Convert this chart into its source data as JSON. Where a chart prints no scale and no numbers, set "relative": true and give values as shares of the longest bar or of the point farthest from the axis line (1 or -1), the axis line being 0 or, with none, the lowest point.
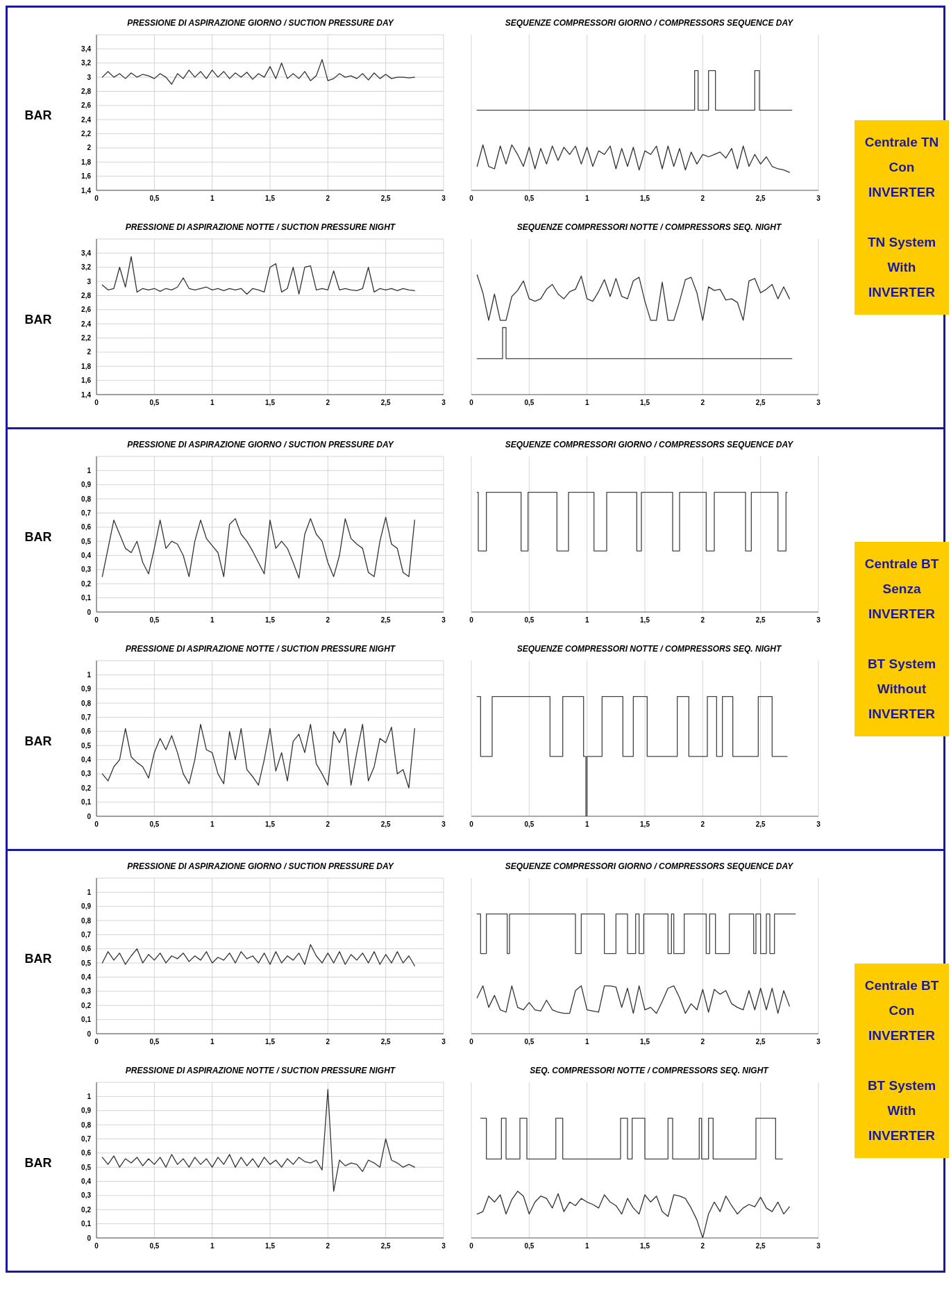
{
  "chart_data": [
    {
      "type": "line",
      "title": "PRESSIONE DI ASPIRAZIONE GIORNO / SUCTION PRESSURE DAY",
      "ylabel": "BAR",
      "color": "#333333",
      "grid": true,
      "xlim": [
        0,
        3
      ],
      "xticks": [
        0,
        {
          "value": 0.5,
          "label": "0,5"
        },
        1,
        {
          "value": 1.5,
          "label": "1,5"
        },
        2,
        {
          "value": 2.5,
          "label": "2,5"
        },
        3
      ],
      "ylim": [
        1.4,
        3.6
      ],
      "yticks": [
        {
          "value": 1.4,
          "label": "1,4"
        },
        {
          "value": 1.6,
          "label": "1,6"
        },
        {
          "value": 1.8,
          "label": "1,8"
        },
        2,
        {
          "value": 2.2,
          "label": "2,2"
        },
        {
          "value": 2.4,
          "label": "2,4"
        },
        {
          "value": 2.6,
          "label": "2,6"
        },
        {
          "value": 2.8,
          "label": "2,8"
        },
        3,
        {
          "value": 3.2,
          "label": "3,2"
        },
        {
          "value": 3.4,
          "label": "3,4"
        }
      ],
      "x": [
        0.05,
        0.1,
        0.15,
        0.2,
        0.25,
        0.3,
        0.35,
        0.4,
        0.45,
        0.5,
        0.55,
        0.6,
        0.65,
        0.7,
        0.75,
        0.8,
        0.85,
        0.9,
        0.95,
        1,
        1.05,
        1.1,
        1.15,
        1.2,
        1.25,
        1.3,
        1.35,
        1.4,
        1.45,
        1.5,
        1.55,
        1.6,
        1.65,
        1.7,
        1.75,
        1.8,
        1.85,
        1.9,
        1.95,
        2,
        2.05,
        2.1,
        2.15,
        2.2,
        2.25,
        2.3,
        2.35,
        2.4,
        2.45,
        2.5,
        2.55,
        2.6,
        2.65,
        2.7,
        2.75
      ],
      "values": [
        3.0,
        3.08,
        3.0,
        3.05,
        2.98,
        3.06,
        3.0,
        3.04,
        3.02,
        2.98,
        3.05,
        3.0,
        2.9,
        3.05,
        2.98,
        3.1,
        3.0,
        3.08,
        2.98,
        3.1,
        3.0,
        3.08,
        2.98,
        3.06,
        3.0,
        3.07,
        2.97,
        3.05,
        3.0,
        3.15,
        2.98,
        3.2,
        2.98,
        3.05,
        2.98,
        3.08,
        2.95,
        3.02,
        3.25,
        2.95,
        2.98,
        3.05,
        3.0,
        3.02,
        2.98,
        3.05,
        2.96,
        3.06,
        2.98,
        3.04,
        2.98,
        3.0,
        3.0,
        2.99,
        3.0
      ]
    },
    {
      "type": "line",
      "title": "SEQUENZE COMPRESSORI GIORNO / COMPRESSORS SEQUENCE DAY",
      "relative": true,
      "tick_labels": "x",
      "grid": "x",
      "xlim": [
        0,
        3
      ],
      "xticks": [
        0,
        {
          "value": 0.5,
          "label": "0,5"
        },
        1,
        {
          "value": 1.5,
          "label": "1,5"
        },
        2,
        {
          "value": 2.5,
          "label": "2,5"
        },
        3
      ],
      "x": [
        0.05,
        0.1,
        0.15,
        0.2,
        0.25,
        0.3,
        0.35,
        0.4,
        0.45,
        0.5,
        0.55,
        0.6,
        0.65,
        0.7,
        0.75,
        0.8,
        0.85,
        0.9,
        0.95,
        1,
        1.05,
        1.1,
        1.15,
        1.2,
        1.25,
        1.3,
        1.35,
        1.4,
        1.45,
        1.5,
        1.55,
        1.6,
        1.65,
        1.7,
        1.75,
        1.8,
        1.85,
        1.9,
        1.95,
        2,
        2.05,
        2.1,
        2.15,
        2.2,
        2.25,
        2.3,
        2.35,
        2.4,
        2.45,
        2.5,
        2.55,
        2.6,
        2.65,
        2.7,
        2.75
      ],
      "series": [
        {
          "type": "step",
          "color": "#444444",
          "x": [
            0.05,
            1.93,
            1.96,
            2.05,
            2.11,
            2.45,
            2.49,
            2.77
          ],
          "values": [
            0.67,
            1,
            0.67,
            1,
            0.67,
            1,
            0.67,
            0.67
          ]
        },
        {
          "type": "line",
          "color": "#333333",
          "values": [
            0.2,
            0.38,
            0.2,
            0.18,
            0.37,
            0.22,
            0.38,
            0.3,
            0.2,
            0.36,
            0.18,
            0.35,
            0.22,
            0.37,
            0.25,
            0.36,
            0.3,
            0.37,
            0.22,
            0.36,
            0.2,
            0.33,
            0.3,
            0.37,
            0.18,
            0.35,
            0.2,
            0.36,
            0.17,
            0.33,
            0.3,
            0.37,
            0.18,
            0.37,
            0.2,
            0.35,
            0.17,
            0.32,
            0.22,
            0.3,
            0.28,
            0.3,
            0.32,
            0.27,
            0.35,
            0.18,
            0.37,
            0.2,
            0.3,
            0.22,
            0.28,
            0.2,
            0.18,
            0.17,
            0.15
          ]
        }
      ]
    },
    {
      "type": "line",
      "title": "PRESSIONE DI ASPIRAZIONE NOTTE / SUCTION PRESSURE NIGHT",
      "ylabel": "BAR",
      "color": "#333333",
      "grid": true,
      "xlim": [
        0,
        3
      ],
      "xticks": [
        0,
        {
          "value": 0.5,
          "label": "0,5"
        },
        1,
        {
          "value": 1.5,
          "label": "1,5"
        },
        2,
        {
          "value": 2.5,
          "label": "2,5"
        },
        3
      ],
      "ylim": [
        1.4,
        3.6
      ],
      "yticks": [
        {
          "value": 1.4,
          "label": "1,4"
        },
        {
          "value": 1.6,
          "label": "1,6"
        },
        {
          "value": 1.8,
          "label": "1,8"
        },
        2,
        {
          "value": 2.2,
          "label": "2,2"
        },
        {
          "value": 2.4,
          "label": "2,4"
        },
        {
          "value": 2.6,
          "label": "2,6"
        },
        {
          "value": 2.8,
          "label": "2,8"
        },
        3,
        {
          "value": 3.2,
          "label": "3,2"
        },
        {
          "value": 3.4,
          "label": "3,4"
        }
      ],
      "x": [
        0.05,
        0.1,
        0.15,
        0.2,
        0.25,
        0.3,
        0.35,
        0.4,
        0.45,
        0.5,
        0.55,
        0.6,
        0.65,
        0.7,
        0.75,
        0.8,
        0.85,
        0.9,
        0.95,
        1,
        1.05,
        1.1,
        1.15,
        1.2,
        1.25,
        1.3,
        1.35,
        1.4,
        1.45,
        1.5,
        1.55,
        1.6,
        1.65,
        1.7,
        1.75,
        1.8,
        1.85,
        1.9,
        1.95,
        2,
        2.05,
        2.1,
        2.15,
        2.2,
        2.25,
        2.3,
        2.35,
        2.4,
        2.45,
        2.5,
        2.55,
        2.6,
        2.65,
        2.7,
        2.75
      ],
      "values": [
        2.95,
        2.88,
        2.9,
        3.2,
        2.92,
        3.35,
        2.85,
        2.9,
        2.88,
        2.9,
        2.86,
        2.9,
        2.88,
        2.92,
        3.05,
        2.9,
        2.88,
        2.9,
        2.92,
        2.88,
        2.9,
        2.87,
        2.9,
        2.88,
        2.9,
        2.82,
        2.9,
        2.88,
        2.85,
        3.2,
        3.25,
        2.85,
        2.9,
        3.2,
        2.82,
        3.2,
        3.22,
        2.88,
        2.9,
        2.88,
        3.15,
        2.88,
        2.9,
        2.88,
        2.87,
        2.9,
        3.2,
        2.85,
        2.9,
        2.88,
        2.9,
        2.87,
        2.9,
        2.88,
        2.87
      ]
    },
    {
      "type": "line",
      "title": "SEQUENZE COMPRESSORI NOTTE / COMPRESSORS SEQ. NIGHT",
      "relative": true,
      "tick_labels": "x",
      "grid": "x",
      "xlim": [
        0,
        3
      ],
      "xticks": [
        0,
        {
          "value": 0.5,
          "label": "0,5"
        },
        1,
        {
          "value": 1.5,
          "label": "1,5"
        },
        2,
        {
          "value": 2.5,
          "label": "2,5"
        },
        3
      ],
      "x": [
        0.05,
        0.1,
        0.15,
        0.2,
        0.25,
        0.3,
        0.35,
        0.4,
        0.45,
        0.5,
        0.55,
        0.6,
        0.65,
        0.7,
        0.75,
        0.8,
        0.85,
        0.9,
        0.95,
        1,
        1.05,
        1.1,
        1.15,
        1.2,
        1.25,
        1.3,
        1.35,
        1.4,
        1.45,
        1.5,
        1.55,
        1.6,
        1.65,
        1.7,
        1.75,
        1.8,
        1.85,
        1.9,
        1.95,
        2,
        2.05,
        2.1,
        2.15,
        2.2,
        2.25,
        2.3,
        2.35,
        2.4,
        2.45,
        2.5,
        2.55,
        2.6,
        2.65,
        2.7,
        2.75
      ],
      "series": [
        {
          "type": "step",
          "color": "#444444",
          "x": [
            0.05,
            0.27,
            0.3,
            2.77
          ],
          "values": [
            0.3,
            0.56,
            0.3,
            0.3
          ]
        },
        {
          "type": "line",
          "color": "#333333",
          "values": [
            1.0,
            0.85,
            0.62,
            0.84,
            0.62,
            0.62,
            0.82,
            0.87,
            0.95,
            0.8,
            0.78,
            0.8,
            0.88,
            0.92,
            0.84,
            0.8,
            0.86,
            0.88,
            0.99,
            0.8,
            0.78,
            0.86,
            0.96,
            0.82,
            0.97,
            0.82,
            0.8,
            0.95,
            0.98,
            0.78,
            0.62,
            0.62,
            0.94,
            0.62,
            0.62,
            0.78,
            0.96,
            0.98,
            0.85,
            0.62,
            0.9,
            0.87,
            0.88,
            0.79,
            0.8,
            0.77,
            0.62,
            0.95,
            0.97,
            0.85,
            0.88,
            0.92,
            0.8,
            0.9,
            0.8
          ]
        }
      ]
    },
    {
      "type": "other",
      "annotations": [
        "Centrale TN",
        "Con",
        "INVERTER",
        "TN System",
        "With",
        "INVERTER"
      ]
    },
    {
      "type": "line",
      "title": "PRESSIONE DI ASPIRAZIONE GIORNO / SUCTION PRESSURE DAY",
      "ylabel": "BAR",
      "color": "#333333",
      "grid": true,
      "xlim": [
        0,
        3
      ],
      "xticks": [
        0,
        {
          "value": 0.5,
          "label": "0,5"
        },
        1,
        {
          "value": 1.5,
          "label": "1,5"
        },
        2,
        {
          "value": 2.5,
          "label": "2,5"
        },
        3
      ],
      "ylim": [
        0,
        1.1
      ],
      "yticks": [
        0,
        {
          "value": 0.1,
          "label": "0,1"
        },
        {
          "value": 0.2,
          "label": "0,2"
        },
        {
          "value": 0.3,
          "label": "0,3"
        },
        {
          "value": 0.4,
          "label": "0,4"
        },
        {
          "value": 0.5,
          "label": "0,5"
        },
        {
          "value": 0.6,
          "label": "0,6"
        },
        {
          "value": 0.7,
          "label": "0,7"
        },
        {
          "value": 0.8,
          "label": "0,8"
        },
        {
          "value": 0.9,
          "label": "0,9"
        },
        1
      ],
      "x": [
        0.05,
        0.1,
        0.15,
        0.2,
        0.25,
        0.3,
        0.35,
        0.4,
        0.45,
        0.5,
        0.55,
        0.6,
        0.65,
        0.7,
        0.75,
        0.8,
        0.85,
        0.9,
        0.95,
        1,
        1.05,
        1.1,
        1.15,
        1.2,
        1.25,
        1.3,
        1.35,
        1.4,
        1.45,
        1.5,
        1.55,
        1.6,
        1.65,
        1.7,
        1.75,
        1.8,
        1.85,
        1.9,
        1.95,
        2,
        2.05,
        2.1,
        2.15,
        2.2,
        2.25,
        2.3,
        2.35,
        2.4,
        2.45,
        2.5,
        2.55,
        2.6,
        2.65,
        2.7,
        2.75
      ],
      "values": [
        0.25,
        0.45,
        0.65,
        0.55,
        0.45,
        0.42,
        0.5,
        0.35,
        0.27,
        0.45,
        0.65,
        0.45,
        0.5,
        0.48,
        0.4,
        0.25,
        0.5,
        0.65,
        0.52,
        0.47,
        0.42,
        0.25,
        0.62,
        0.66,
        0.55,
        0.5,
        0.43,
        0.35,
        0.27,
        0.65,
        0.45,
        0.5,
        0.45,
        0.35,
        0.24,
        0.55,
        0.66,
        0.55,
        0.5,
        0.35,
        0.25,
        0.4,
        0.66,
        0.52,
        0.48,
        0.45,
        0.28,
        0.25,
        0.5,
        0.67,
        0.48,
        0.45,
        0.28,
        0.25,
        0.65
      ]
    },
    {
      "type": "line",
      "title": "SEQUENZE COMPRESSORI GIORNO / COMPRESSORS SEQUENCE DAY",
      "relative": true,
      "tick_labels": "x",
      "grid": "x",
      "xlim": [
        0,
        3
      ],
      "xticks": [
        0,
        {
          "value": 0.5,
          "label": "0,5"
        },
        1,
        {
          "value": 1.5,
          "label": "1,5"
        },
        2,
        {
          "value": 2.5,
          "label": "2,5"
        },
        3
      ],
      "series": [
        {
          "type": "step",
          "color": "#444444",
          "x": [
            0.05,
            0.06,
            0.13,
            0.43,
            0.49,
            0.74,
            0.84,
            1.06,
            1.17,
            1.43,
            1.47,
            1.74,
            1.8,
            2.03,
            2.1,
            2.37,
            2.42,
            2.65,
            2.72,
            2.73
          ],
          "values": [
            1,
            0.51,
            1,
            0.51,
            1,
            0.51,
            1,
            0.51,
            1,
            0.51,
            1,
            0.51,
            1,
            0.51,
            1,
            0.51,
            1,
            0.51,
            1,
            1
          ]
        }
      ]
    },
    {
      "type": "line",
      "title": "PRESSIONE DI ASPIRAZIONE NOTTE / SUCTION PRESSURE NIGHT",
      "ylabel": "BAR",
      "color": "#333333",
      "grid": true,
      "xlim": [
        0,
        3
      ],
      "xticks": [
        0,
        {
          "value": 0.5,
          "label": "0,5"
        },
        1,
        {
          "value": 1.5,
          "label": "1,5"
        },
        2,
        {
          "value": 2.5,
          "label": "2,5"
        },
        3
      ],
      "ylim": [
        0,
        1.1
      ],
      "yticks": [
        0,
        {
          "value": 0.1,
          "label": "0,1"
        },
        {
          "value": 0.2,
          "label": "0,2"
        },
        {
          "value": 0.3,
          "label": "0,3"
        },
        {
          "value": 0.4,
          "label": "0,4"
        },
        {
          "value": 0.5,
          "label": "0,5"
        },
        {
          "value": 0.6,
          "label": "0,6"
        },
        {
          "value": 0.7,
          "label": "0,7"
        },
        {
          "value": 0.8,
          "label": "0,8"
        },
        {
          "value": 0.9,
          "label": "0,9"
        },
        1
      ],
      "x": [
        0.05,
        0.1,
        0.15,
        0.2,
        0.25,
        0.3,
        0.35,
        0.4,
        0.45,
        0.5,
        0.55,
        0.6,
        0.65,
        0.7,
        0.75,
        0.8,
        0.85,
        0.9,
        0.95,
        1,
        1.05,
        1.1,
        1.15,
        1.2,
        1.25,
        1.3,
        1.35,
        1.4,
        1.45,
        1.5,
        1.55,
        1.6,
        1.65,
        1.7,
        1.75,
        1.8,
        1.85,
        1.9,
        1.95,
        2,
        2.05,
        2.1,
        2.15,
        2.2,
        2.25,
        2.3,
        2.35,
        2.4,
        2.45,
        2.5,
        2.55,
        2.6,
        2.65,
        2.7,
        2.75
      ],
      "values": [
        0.3,
        0.25,
        0.35,
        0.4,
        0.62,
        0.42,
        0.38,
        0.35,
        0.27,
        0.45,
        0.55,
        0.47,
        0.57,
        0.45,
        0.3,
        0.23,
        0.4,
        0.65,
        0.47,
        0.45,
        0.3,
        0.23,
        0.6,
        0.4,
        0.62,
        0.33,
        0.28,
        0.22,
        0.4,
        0.62,
        0.32,
        0.45,
        0.25,
        0.53,
        0.58,
        0.45,
        0.65,
        0.37,
        0.3,
        0.22,
        0.6,
        0.52,
        0.62,
        0.22,
        0.45,
        0.65,
        0.25,
        0.35,
        0.55,
        0.52,
        0.63,
        0.3,
        0.33,
        0.2,
        0.62
      ]
    },
    {
      "type": "line",
      "title": "SEQUENZE COMPRESSORI NOTTE / COMPRESSORS SEQ. NIGHT",
      "relative": true,
      "tick_labels": "x",
      "grid": "x",
      "xlim": [
        0,
        3
      ],
      "xticks": [
        0,
        {
          "value": 0.5,
          "label": "0,5"
        },
        1,
        {
          "value": 1.5,
          "label": "1,5"
        },
        2,
        {
          "value": 2.5,
          "label": "2,5"
        },
        3
      ],
      "series": [
        {
          "type": "step",
          "color": "#444444",
          "x": [
            0.05,
            0.08,
            0.18,
            0.68,
            0.79,
            0.97,
            0.99,
            1.0,
            1.13,
            1.31,
            1.4,
            1.52,
            1.78,
            1.88,
            2.04,
            2.12,
            2.17,
            2.26,
            2.48,
            2.6,
            2.73
          ],
          "values": [
            1,
            0.5,
            1,
            0.5,
            1,
            0.5,
            0,
            0.5,
            1,
            0.5,
            1,
            0.5,
            1,
            0.5,
            1,
            0.5,
            1,
            0.5,
            1,
            0.5,
            0.5
          ]
        }
      ]
    },
    {
      "type": "other",
      "annotations": [
        "Centrale BT",
        "Senza",
        "INVERTER",
        "BT System",
        "Without",
        "INVERTER"
      ]
    },
    {
      "type": "line",
      "title": "PRESSIONE DI ASPIRAZIONE GIORNO / SUCTION PRESSURE DAY",
      "ylabel": "BAR",
      "color": "#333333",
      "grid": true,
      "xlim": [
        0,
        3
      ],
      "xticks": [
        0,
        {
          "value": 0.5,
          "label": "0,5"
        },
        1,
        {
          "value": 1.5,
          "label": "1,5"
        },
        2,
        {
          "value": 2.5,
          "label": "2,5"
        },
        3
      ],
      "ylim": [
        0,
        1.1
      ],
      "yticks": [
        0,
        {
          "value": 0.1,
          "label": "0,1"
        },
        {
          "value": 0.2,
          "label": "0,2"
        },
        {
          "value": 0.3,
          "label": "0,3"
        },
        {
          "value": 0.4,
          "label": "0,4"
        },
        {
          "value": 0.5,
          "label": "0,5"
        },
        {
          "value": 0.6,
          "label": "0,6"
        },
        {
          "value": 0.7,
          "label": "0,7"
        },
        {
          "value": 0.8,
          "label": "0,8"
        },
        {
          "value": 0.9,
          "label": "0,9"
        },
        1
      ],
      "x": [
        0.05,
        0.1,
        0.15,
        0.2,
        0.25,
        0.3,
        0.35,
        0.4,
        0.45,
        0.5,
        0.55,
        0.6,
        0.65,
        0.7,
        0.75,
        0.8,
        0.85,
        0.9,
        0.95,
        1,
        1.05,
        1.1,
        1.15,
        1.2,
        1.25,
        1.3,
        1.35,
        1.4,
        1.45,
        1.5,
        1.55,
        1.6,
        1.65,
        1.7,
        1.75,
        1.8,
        1.85,
        1.9,
        1.95,
        2,
        2.05,
        2.1,
        2.15,
        2.2,
        2.25,
        2.3,
        2.35,
        2.4,
        2.45,
        2.5,
        2.55,
        2.6,
        2.65,
        2.7,
        2.75
      ],
      "values": [
        0.5,
        0.58,
        0.52,
        0.57,
        0.49,
        0.55,
        0.6,
        0.5,
        0.56,
        0.52,
        0.57,
        0.5,
        0.55,
        0.53,
        0.57,
        0.51,
        0.55,
        0.52,
        0.58,
        0.5,
        0.54,
        0.52,
        0.57,
        0.5,
        0.58,
        0.53,
        0.55,
        0.5,
        0.57,
        0.49,
        0.58,
        0.5,
        0.55,
        0.52,
        0.57,
        0.49,
        0.63,
        0.55,
        0.5,
        0.57,
        0.5,
        0.58,
        0.49,
        0.56,
        0.52,
        0.57,
        0.5,
        0.58,
        0.49,
        0.56,
        0.5,
        0.58,
        0.5,
        0.55,
        0.48
      ]
    },
    {
      "type": "line",
      "title": "SEQUENZE COMPRESSORI GIORNO / COMPRESSORS SEQUENCE DAY",
      "relative": true,
      "tick_labels": "x",
      "grid": "x",
      "xlim": [
        0,
        3
      ],
      "xticks": [
        0,
        {
          "value": 0.5,
          "label": "0,5"
        },
        1,
        {
          "value": 1.5,
          "label": "1,5"
        },
        2,
        {
          "value": 2.5,
          "label": "2,5"
        },
        3
      ],
      "x": [
        0.05,
        0.1,
        0.15,
        0.2,
        0.25,
        0.3,
        0.35,
        0.4,
        0.45,
        0.5,
        0.55,
        0.6,
        0.65,
        0.7,
        0.75,
        0.8,
        0.85,
        0.9,
        0.95,
        1,
        1.05,
        1.1,
        1.15,
        1.2,
        1.25,
        1.3,
        1.35,
        1.4,
        1.45,
        1.5,
        1.55,
        1.6,
        1.65,
        1.7,
        1.75,
        1.8,
        1.85,
        1.9,
        1.95,
        2,
        2.05,
        2.1,
        2.15,
        2.2,
        2.25,
        2.3,
        2.35,
        2.4,
        2.45,
        2.5,
        2.55,
        2.6,
        2.65,
        2.7,
        2.75
      ],
      "series": [
        {
          "type": "step",
          "color": "#444444",
          "x": [
            0.05,
            0.08,
            0.13,
            0.31,
            0.33,
            0.9,
            0.95,
            1.15,
            1.25,
            1.35,
            1.42,
            1.45,
            1.49,
            1.7,
            1.73,
            1.75,
            1.84,
            2.03,
            2.06,
            2.11,
            2.23,
            2.44,
            2.46,
            2.5,
            2.55,
            2.58,
            2.62,
            2.8
          ],
          "values": [
            1,
            0.67,
            1,
            0.67,
            1,
            0.67,
            1,
            0.67,
            1,
            0.67,
            1,
            0.67,
            1,
            0.67,
            1,
            0.67,
            1,
            0.67,
            1,
            0.67,
            1,
            0.67,
            1,
            0.67,
            1,
            0.67,
            1,
            1
          ]
        },
        {
          "type": "line",
          "color": "#333333",
          "values": [
            0.3,
            0.4,
            0.22,
            0.32,
            0.2,
            0.18,
            0.4,
            0.22,
            0.2,
            0.26,
            0.2,
            0.19,
            0.28,
            0.2,
            0.18,
            0.17,
            0.17,
            0.36,
            0.4,
            0.2,
            0.19,
            0.18,
            0.4,
            0.4,
            0.39,
            0.22,
            0.38,
            0.17,
            0.4,
            0.2,
            0.22,
            0.17,
            0.27,
            0.38,
            0.4,
            0.3,
            0.17,
            0.25,
            0.2,
            0.37,
            0.18,
            0.37,
            0.33,
            0.36,
            0.25,
            0.22,
            0.2,
            0.36,
            0.2,
            0.38,
            0.2,
            0.38,
            0.17,
            0.36,
            0.23
          ]
        }
      ]
    },
    {
      "type": "line",
      "title": "PRESSIONE DI ASPIRAZIONE NOTTE / SUCTION PRESSURE NIGHT",
      "ylabel": "BAR",
      "color": "#333333",
      "grid": true,
      "xlim": [
        0,
        3
      ],
      "xticks": [
        0,
        {
          "value": 0.5,
          "label": "0,5"
        },
        1,
        {
          "value": 1.5,
          "label": "1,5"
        },
        2,
        {
          "value": 2.5,
          "label": "2,5"
        },
        3
      ],
      "ylim": [
        0,
        1.1
      ],
      "yticks": [
        0,
        {
          "value": 0.1,
          "label": "0,1"
        },
        {
          "value": 0.2,
          "label": "0,2"
        },
        {
          "value": 0.3,
          "label": "0,3"
        },
        {
          "value": 0.4,
          "label": "0,4"
        },
        {
          "value": 0.5,
          "label": "0,5"
        },
        {
          "value": 0.6,
          "label": "0,6"
        },
        {
          "value": 0.7,
          "label": "0,7"
        },
        {
          "value": 0.8,
          "label": "0,8"
        },
        {
          "value": 0.9,
          "label": "0,9"
        },
        1
      ],
      "x": [
        0.05,
        0.1,
        0.15,
        0.2,
        0.25,
        0.3,
        0.35,
        0.4,
        0.45,
        0.5,
        0.55,
        0.6,
        0.65,
        0.7,
        0.75,
        0.8,
        0.85,
        0.9,
        0.95,
        1,
        1.05,
        1.1,
        1.15,
        1.2,
        1.25,
        1.3,
        1.35,
        1.4,
        1.45,
        1.5,
        1.55,
        1.6,
        1.65,
        1.7,
        1.75,
        1.8,
        1.85,
        1.9,
        1.95,
        2,
        2.05,
        2.1,
        2.15,
        2.2,
        2.25,
        2.3,
        2.35,
        2.4,
        2.45,
        2.5,
        2.55,
        2.6,
        2.65,
        2.7,
        2.75
      ],
      "values": [
        0.57,
        0.52,
        0.58,
        0.5,
        0.56,
        0.53,
        0.57,
        0.51,
        0.56,
        0.52,
        0.57,
        0.5,
        0.59,
        0.52,
        0.56,
        0.5,
        0.57,
        0.52,
        0.56,
        0.5,
        0.57,
        0.52,
        0.59,
        0.5,
        0.57,
        0.51,
        0.56,
        0.5,
        0.57,
        0.52,
        0.55,
        0.5,
        0.56,
        0.52,
        0.57,
        0.54,
        0.53,
        0.55,
        0.48,
        1.05,
        0.33,
        0.55,
        0.51,
        0.53,
        0.52,
        0.47,
        0.55,
        0.53,
        0.5,
        0.7,
        0.55,
        0.53,
        0.5,
        0.52,
        0.5
      ]
    },
    {
      "type": "line",
      "title": "SEQ. COMPRESSORI NOTTE / COMPRESSORS SEQ. NIGHT",
      "relative": true,
      "tick_labels": "x",
      "grid": "x",
      "xlim": [
        0,
        3
      ],
      "xticks": [
        0,
        {
          "value": 0.5,
          "label": "0,5"
        },
        1,
        {
          "value": 1.5,
          "label": "1,5"
        },
        2,
        {
          "value": 2.5,
          "label": "2,5"
        },
        3
      ],
      "x": [
        0.05,
        0.1,
        0.15,
        0.2,
        0.25,
        0.3,
        0.35,
        0.4,
        0.45,
        0.5,
        0.55,
        0.6,
        0.65,
        0.7,
        0.75,
        0.8,
        0.85,
        0.9,
        0.95,
        1,
        1.05,
        1.1,
        1.15,
        1.2,
        1.25,
        1.3,
        1.35,
        1.4,
        1.45,
        1.5,
        1.55,
        1.6,
        1.65,
        1.7,
        1.75,
        1.8,
        1.85,
        1.9,
        1.95,
        2,
        2.05,
        2.1,
        2.15,
        2.2,
        2.25,
        2.3,
        2.35,
        2.4,
        2.45,
        2.5,
        2.55,
        2.6,
        2.65,
        2.7,
        2.75
      ],
      "series": [
        {
          "type": "step",
          "color": "#444444",
          "x": [
            0.08,
            0.13,
            0.26,
            0.3,
            0.42,
            0.48,
            0.73,
            0.79,
            1.29,
            1.35,
            1.39,
            1.5,
            1.7,
            1.74,
            1.97,
            1.99,
            2.05,
            2.09,
            2.46,
            2.63,
            2.69
          ],
          "values": [
            1,
            0.66,
            1,
            0.66,
            1,
            0.66,
            1,
            0.66,
            1,
            0.66,
            1,
            0.66,
            1,
            0.66,
            1,
            0.66,
            1,
            0.66,
            1,
            0.66,
            0.66
          ]
        },
        {
          "type": "line",
          "color": "#333333",
          "values": [
            0.2,
            0.22,
            0.35,
            0.3,
            0.36,
            0.2,
            0.32,
            0.39,
            0.35,
            0.2,
            0.3,
            0.35,
            0.33,
            0.25,
            0.37,
            0.22,
            0.3,
            0.27,
            0.33,
            0.3,
            0.28,
            0.25,
            0.36,
            0.3,
            0.27,
            0.2,
            0.33,
            0.25,
            0.2,
            0.36,
            0.3,
            0.35,
            0.22,
            0.18,
            0.36,
            0.35,
            0.33,
            0.25,
            0.15,
            0,
            0.2,
            0.3,
            0.22,
            0.35,
            0.27,
            0.2,
            0.25,
            0.28,
            0.26,
            0.34,
            0.25,
            0.22,
            0.3,
            0.2,
            0.26
          ]
        }
      ]
    },
    {
      "type": "other",
      "annotations": [
        "Centrale BT",
        "Con",
        "INVERTER",
        "BT System",
        "With",
        "INVERTER"
      ]
    }
  ]
}
